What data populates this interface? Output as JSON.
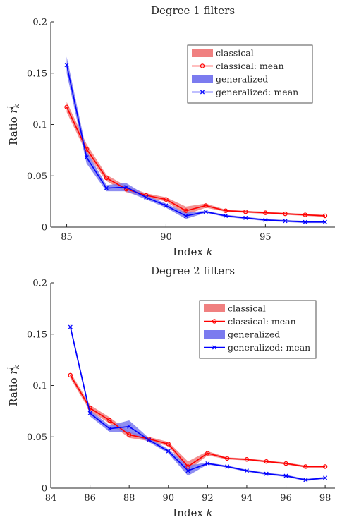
{
  "chart_data": [
    {
      "type": "line",
      "title": "Degree 1 filters",
      "xlabel_prefix": "Index ",
      "xlabel_var": "k",
      "ylabel_prefix": "Ratio ",
      "ylabel_var": "r",
      "ylabel_sup": "l",
      "ylabel_sub": "k",
      "xlim": [
        84.2,
        98.5
      ],
      "ylim": [
        0,
        0.2
      ],
      "xticks": [
        85,
        90,
        95
      ],
      "xtick_labels": [
        "85",
        "90",
        "95"
      ],
      "yticks": [
        0,
        0.05,
        0.1,
        0.15,
        0.2
      ],
      "ytick_labels": [
        "0",
        "0.05",
        "0.1",
        "0.15",
        "0.2"
      ],
      "legend_position": "top-right",
      "legend": [
        "classical",
        "classical: mean",
        "generalized",
        "generalized: mean"
      ],
      "colors": {
        "classical": "#ff0000",
        "classical_band": "#f08080",
        "generalized": "#0000ff",
        "generalized_band": "#7b7bef"
      },
      "series": [
        {
          "name": "classical: mean",
          "marker": "circle",
          "x": [
            85,
            86,
            87,
            88,
            89,
            90,
            91,
            92,
            93,
            94,
            95,
            96,
            97,
            98
          ],
          "y": [
            0.117,
            0.076,
            0.048,
            0.037,
            0.031,
            0.027,
            0.016,
            0.021,
            0.016,
            0.015,
            0.014,
            0.013,
            0.012,
            0.011
          ],
          "band_lower": [
            0.112,
            0.072,
            0.045,
            0.034,
            0.029,
            0.025,
            0.012,
            0.019,
            0.015,
            0.014,
            0.013,
            0.012,
            0.011,
            0.01
          ],
          "band_upper": [
            0.122,
            0.081,
            0.051,
            0.04,
            0.033,
            0.029,
            0.02,
            0.023,
            0.017,
            0.016,
            0.015,
            0.014,
            0.013,
            0.012
          ]
        },
        {
          "name": "generalized: mean",
          "marker": "x",
          "x": [
            85,
            86,
            87,
            88,
            89,
            90,
            91,
            92,
            93,
            94,
            95,
            96,
            97,
            98
          ],
          "y": [
            0.158,
            0.068,
            0.038,
            0.039,
            0.029,
            0.021,
            0.011,
            0.015,
            0.011,
            0.009,
            0.007,
            0.006,
            0.005,
            0.005
          ],
          "band_lower": [
            0.15,
            0.062,
            0.035,
            0.035,
            0.027,
            0.019,
            0.008,
            0.014,
            0.01,
            0.008,
            0.006,
            0.005,
            0.004,
            0.004
          ],
          "band_upper": [
            0.166,
            0.074,
            0.041,
            0.043,
            0.031,
            0.023,
            0.014,
            0.016,
            0.012,
            0.01,
            0.008,
            0.007,
            0.006,
            0.006
          ]
        }
      ]
    },
    {
      "type": "line",
      "title": "Degree 2 filters",
      "xlabel_prefix": "Index ",
      "xlabel_var": "k",
      "ylabel_prefix": "Ratio ",
      "ylabel_var": "r",
      "ylabel_sup": "l",
      "ylabel_sub": "k",
      "xlim": [
        84,
        98.5
      ],
      "ylim": [
        0,
        0.2
      ],
      "xticks": [
        84,
        86,
        88,
        90,
        92,
        94,
        96,
        98
      ],
      "xtick_labels": [
        "84",
        "86",
        "88",
        "90",
        "92",
        "94",
        "96",
        "98"
      ],
      "yticks": [
        0,
        0.05,
        0.1,
        0.15,
        0.2
      ],
      "ytick_labels": [
        "0",
        "0.05",
        "0.1",
        "0.15",
        "0.2"
      ],
      "legend_position": "top-right",
      "legend": [
        "classical",
        "classical: mean",
        "generalized",
        "generalized: mean"
      ],
      "colors": {
        "classical": "#ff0000",
        "classical_band": "#f08080",
        "generalized": "#0000ff",
        "generalized_band": "#7b7bef"
      },
      "series": [
        {
          "name": "classical: mean",
          "marker": "circle",
          "x": [
            85,
            86,
            87,
            88,
            89,
            90,
            91,
            92,
            93,
            94,
            95,
            96,
            97,
            98
          ],
          "y": [
            0.11,
            0.078,
            0.066,
            0.052,
            0.048,
            0.043,
            0.021,
            0.034,
            0.029,
            0.028,
            0.026,
            0.024,
            0.021,
            0.021
          ],
          "band_lower": [
            0.107,
            0.075,
            0.063,
            0.049,
            0.046,
            0.041,
            0.017,
            0.032,
            0.028,
            0.027,
            0.025,
            0.023,
            0.02,
            0.02
          ],
          "band_upper": [
            0.113,
            0.081,
            0.069,
            0.055,
            0.05,
            0.045,
            0.026,
            0.036,
            0.03,
            0.029,
            0.027,
            0.025,
            0.022,
            0.022
          ]
        },
        {
          "name": "generalized: mean",
          "marker": "x",
          "x": [
            85,
            86,
            87,
            88,
            89,
            90,
            91,
            92,
            93,
            94,
            95,
            96,
            97,
            98
          ],
          "y": [
            0.157,
            0.073,
            0.058,
            0.06,
            0.047,
            0.036,
            0.017,
            0.024,
            0.021,
            0.017,
            0.014,
            0.012,
            0.008,
            0.01
          ],
          "band_lower": [
            0.154,
            0.07,
            0.055,
            0.054,
            0.045,
            0.034,
            0.012,
            0.023,
            0.02,
            0.016,
            0.013,
            0.011,
            0.007,
            0.009
          ],
          "band_upper": [
            0.16,
            0.076,
            0.061,
            0.066,
            0.049,
            0.038,
            0.022,
            0.025,
            0.022,
            0.018,
            0.015,
            0.013,
            0.009,
            0.011
          ]
        }
      ]
    }
  ]
}
